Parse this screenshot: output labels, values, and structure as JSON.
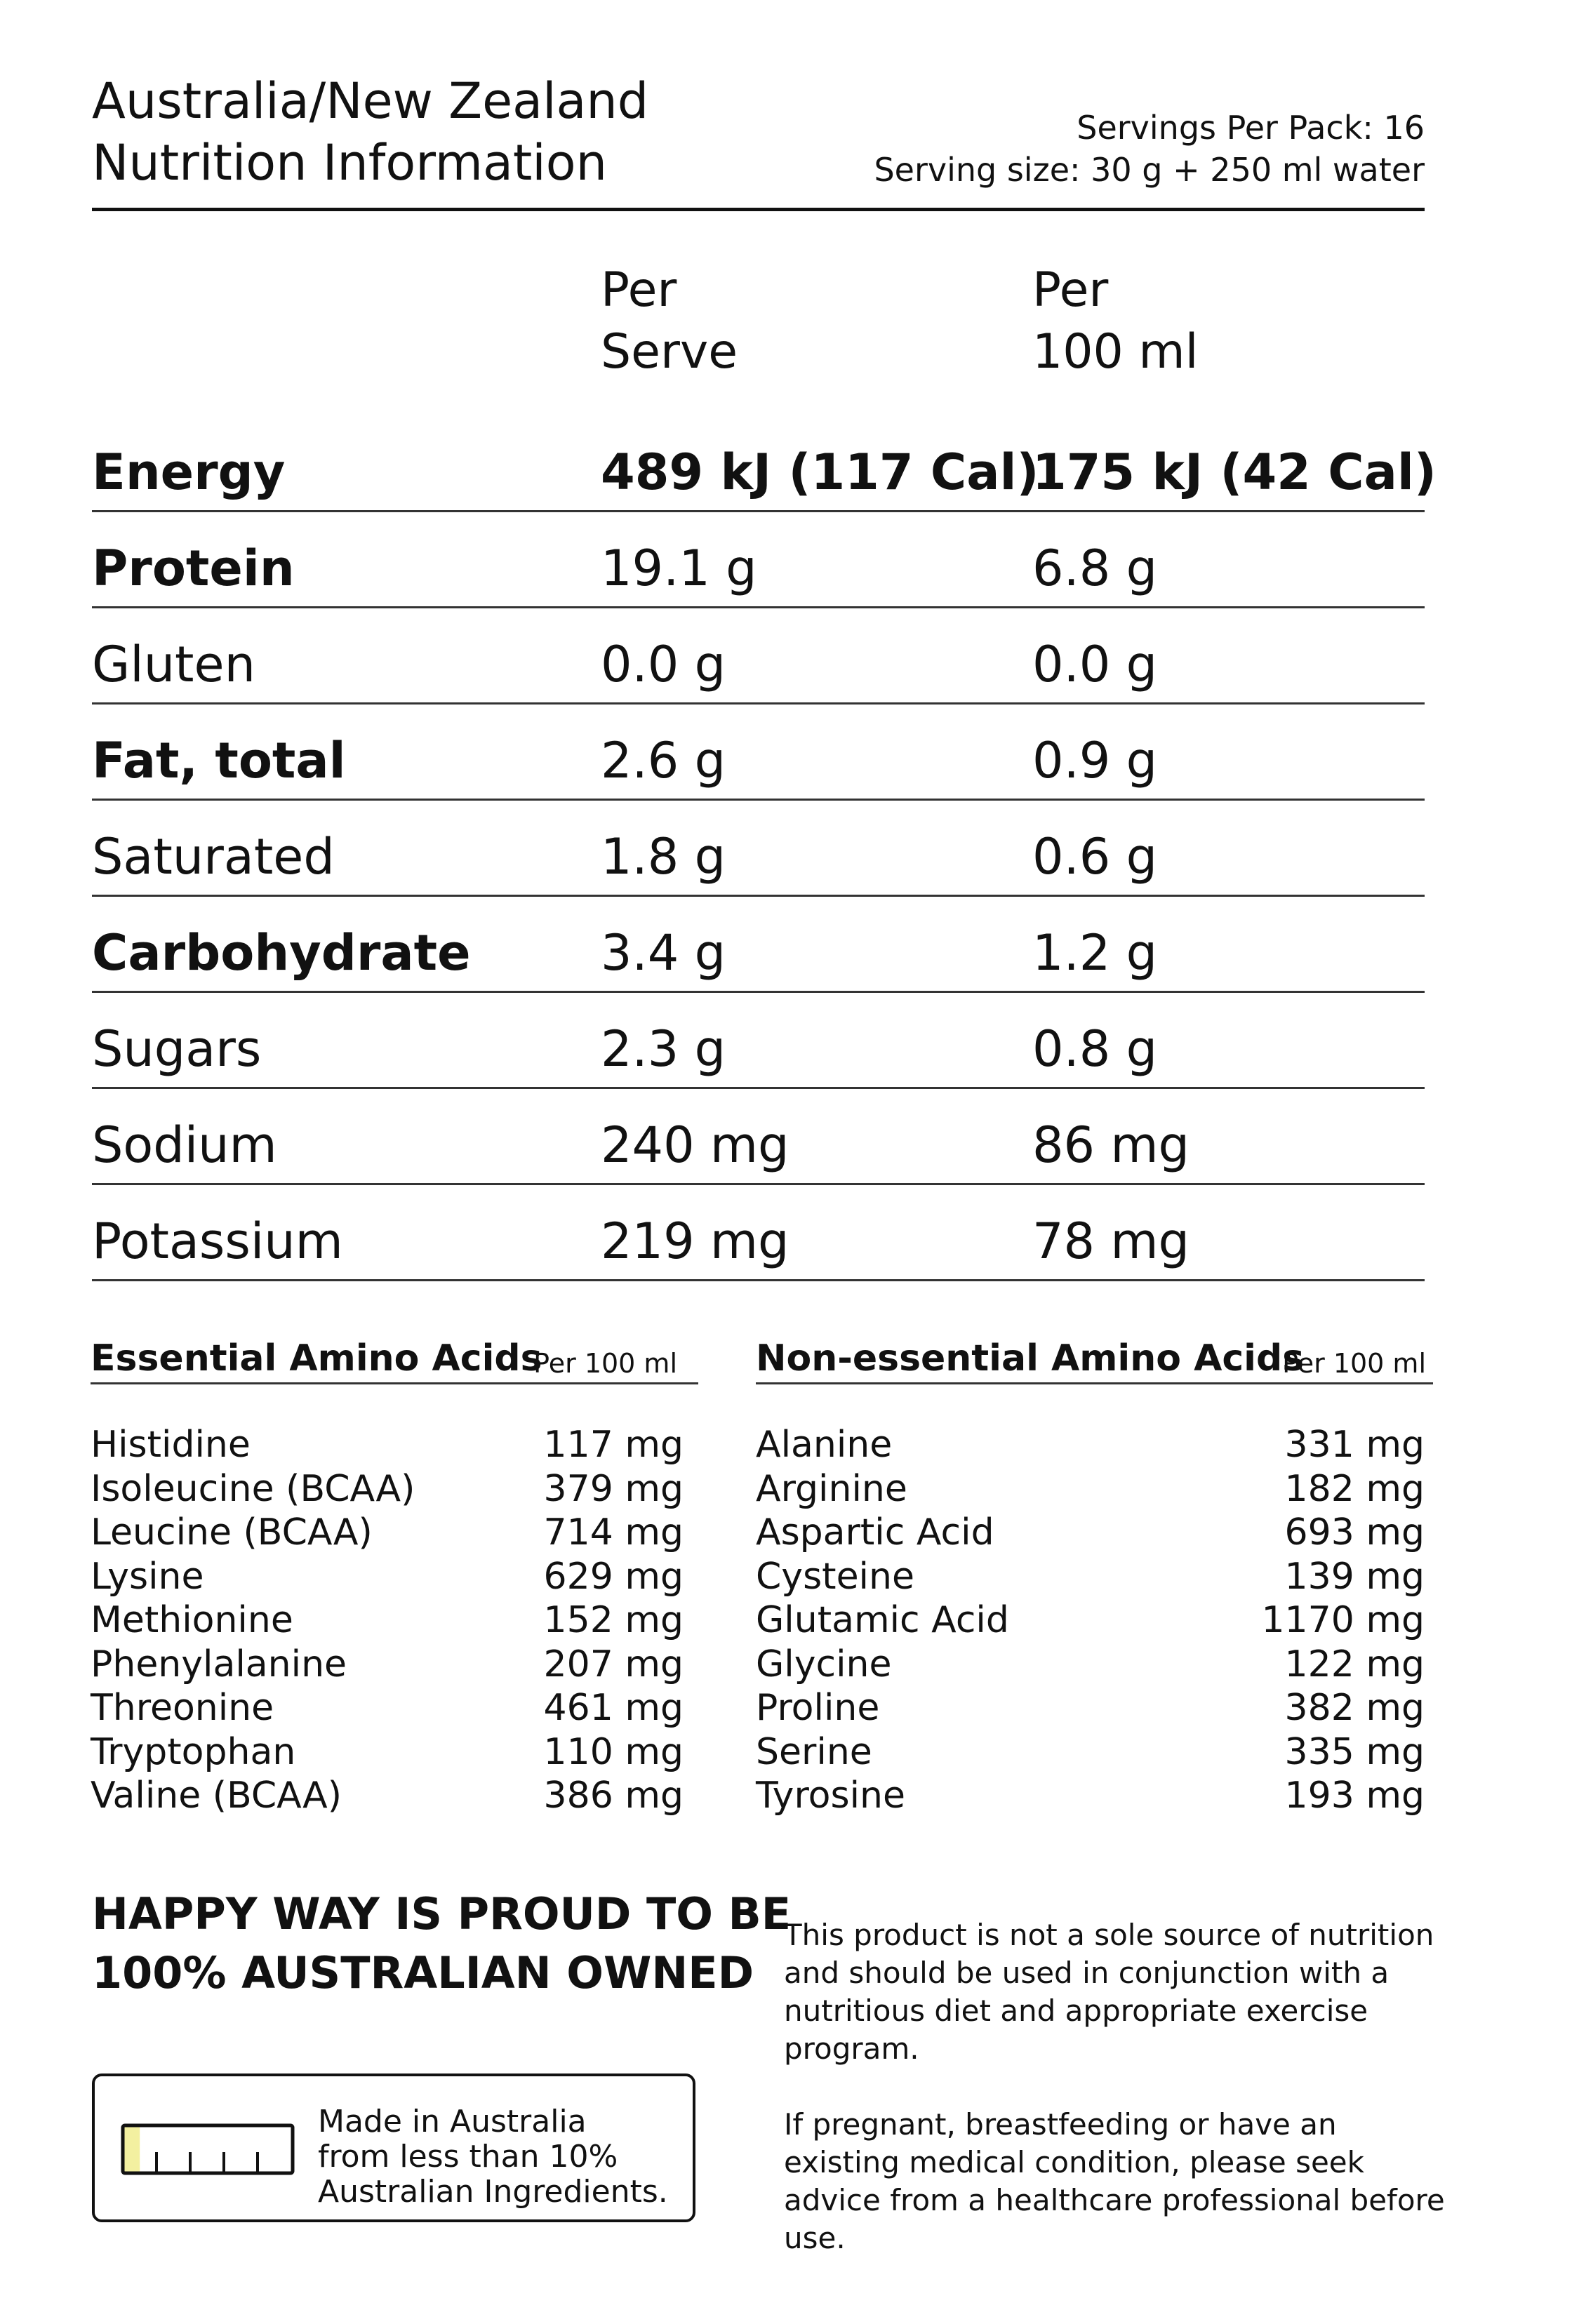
{
  "header": {
    "title_line1": "Australia/New Zealand",
    "title_line2": "Nutrition Information",
    "servings_per_pack": "Servings Per Pack: 16",
    "serving_size": "Serving size: 30 g + 250 ml water"
  },
  "columns": {
    "per_serve_line1": "Per",
    "per_serve_line2": "Serve",
    "per_100_line1": "Per",
    "per_100_line2": "100 ml"
  },
  "nutrients": [
    {
      "name": "Energy",
      "serve": "489 kJ (117 Cal)",
      "per100": "175 kJ (42 Cal)"
    },
    {
      "name": "Protein",
      "serve": "19.1 g",
      "per100": "6.8 g"
    },
    {
      "name": "Gluten",
      "serve": "0.0 g",
      "per100": "0.0 g"
    },
    {
      "name": "Fat, total",
      "serve": "2.6 g",
      "per100": "0.9 g"
    },
    {
      "name": "Saturated",
      "serve": "1.8 g",
      "per100": "0.6 g"
    },
    {
      "name": "Carbohydrate",
      "serve": "3.4 g",
      "per100": "1.2 g"
    },
    {
      "name": "Sugars",
      "serve": "2.3 g",
      "per100": "0.8 g"
    },
    {
      "name": "Sodium",
      "serve": "240 mg",
      "per100": "86 mg"
    },
    {
      "name": "Potassium",
      "serve": "219 mg",
      "per100": "78 mg"
    }
  ],
  "essential": {
    "title": "Essential Amino Acids",
    "per": "Per 100 ml",
    "items": [
      {
        "name": "Histidine",
        "value": "117 mg"
      },
      {
        "name": "Isoleucine (BCAA)",
        "value": "379 mg"
      },
      {
        "name": "Leucine (BCAA)",
        "value": "714 mg"
      },
      {
        "name": "Lysine",
        "value": "629 mg"
      },
      {
        "name": "Methionine",
        "value": "152 mg"
      },
      {
        "name": "Phenylalanine",
        "value": "207 mg"
      },
      {
        "name": "Threonine",
        "value": "461 mg"
      },
      {
        "name": "Tryptophan",
        "value": "110 mg"
      },
      {
        "name": "Valine (BCAA)",
        "value": "386 mg"
      }
    ]
  },
  "nonessential": {
    "title": "Non-essential Amino Acids",
    "per": "Per 100 ml",
    "items": [
      {
        "name": "Alanine",
        "value": "331 mg"
      },
      {
        "name": "Arginine",
        "value": "182 mg"
      },
      {
        "name": "Aspartic Acid",
        "value": "693 mg"
      },
      {
        "name": "Cysteine",
        "value": "139 mg"
      },
      {
        "name": "Glutamic Acid",
        "value": "1170 mg"
      },
      {
        "name": "Glycine",
        "value": "122 mg"
      },
      {
        "name": "Proline",
        "value": "382 mg"
      },
      {
        "name": "Serine",
        "value": "335 mg"
      },
      {
        "name": "Tyrosine",
        "value": "193 mg"
      }
    ]
  },
  "footer": {
    "proud": "HAPPY WAY IS PROUD TO BE\n100% AUSTRALIAN OWNED",
    "made_in": "Made in Australia\nfrom less than 10%\nAustralian Ingredients.",
    "australian_ingredients_fraction": 0.1,
    "gauge_color": "#f3f0a0",
    "disclaimer1": "This product is not a sole source of nutrition and should be used in conjunction with a nutritious diet and appropriate exercise program.",
    "disclaimer2": "If pregnant, breastfeeding or have an existing medical condition, please seek advice from a healthcare professional before use."
  }
}
